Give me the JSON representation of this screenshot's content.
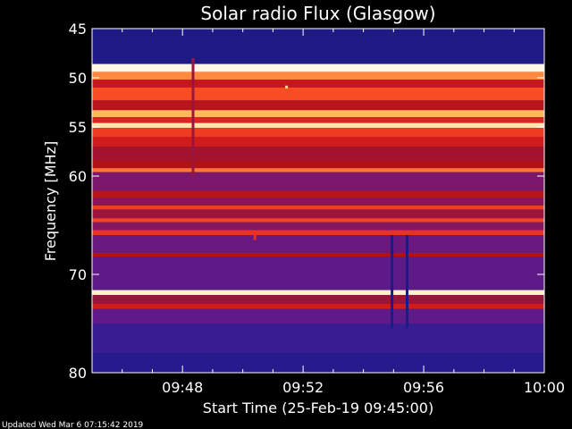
{
  "chart_data": {
    "type": "heatmap",
    "title": "Solar radio Flux (Glasgow)",
    "xlabel": "Start Time (25-Feb-19 09:45:00)",
    "ylabel": "Frequency [MHz]",
    "x_range_minutes": [
      0,
      15
    ],
    "ylim": [
      45,
      80
    ],
    "y_inverted": true,
    "x_ticks": [
      {
        "minute": 3,
        "label": "09:48"
      },
      {
        "minute": 7,
        "label": "09:52"
      },
      {
        "minute": 11,
        "label": "09:56"
      },
      {
        "minute": 15,
        "label": "10:00"
      }
    ],
    "y_ticks": [
      45,
      50,
      55,
      60,
      70,
      80
    ],
    "colormap": [
      "#1a1a80",
      "#2a1a90",
      "#4b1c94",
      "#7a1870",
      "#b01218",
      "#e32222",
      "#ff5a22",
      "#ffcf6a",
      "#ffffff"
    ],
    "background_intensity": 0.32,
    "bands": [
      {
        "from": 45.0,
        "to": 45.9,
        "intensity": 0.03
      },
      {
        "from": 45.9,
        "to": 48.6,
        "intensity": 0.05
      },
      {
        "from": 48.6,
        "to": 49.4,
        "intensity": 0.98
      },
      {
        "from": 49.4,
        "to": 50.2,
        "intensity": 0.8
      },
      {
        "from": 50.2,
        "to": 51.0,
        "intensity": 0.55
      },
      {
        "from": 51.0,
        "to": 52.3,
        "intensity": 0.72
      },
      {
        "from": 52.3,
        "to": 53.3,
        "intensity": 0.52
      },
      {
        "from": 53.3,
        "to": 54.0,
        "intensity": 0.85
      },
      {
        "from": 54.0,
        "to": 54.6,
        "intensity": 0.62
      },
      {
        "from": 54.6,
        "to": 55.1,
        "intensity": 0.93
      },
      {
        "from": 55.1,
        "to": 56.0,
        "intensity": 0.68
      },
      {
        "from": 56.0,
        "to": 57.0,
        "intensity": 0.58
      },
      {
        "from": 57.0,
        "to": 58.4,
        "intensity": 0.47
      },
      {
        "from": 58.4,
        "to": 59.2,
        "intensity": 0.5
      },
      {
        "from": 59.2,
        "to": 59.6,
        "intensity": 0.78
      },
      {
        "from": 59.6,
        "to": 61.5,
        "intensity": 0.38
      },
      {
        "from": 61.5,
        "to": 62.2,
        "intensity": 0.52
      },
      {
        "from": 62.2,
        "to": 63.0,
        "intensity": 0.42
      },
      {
        "from": 63.0,
        "to": 63.4,
        "intensity": 0.68
      },
      {
        "from": 63.4,
        "to": 64.3,
        "intensity": 0.45
      },
      {
        "from": 64.3,
        "to": 64.7,
        "intensity": 0.7
      },
      {
        "from": 64.7,
        "to": 65.5,
        "intensity": 0.4
      },
      {
        "from": 65.5,
        "to": 66.0,
        "intensity": 0.66
      },
      {
        "from": 66.0,
        "to": 67.8,
        "intensity": 0.33
      },
      {
        "from": 67.8,
        "to": 68.2,
        "intensity": 0.5
      },
      {
        "from": 68.2,
        "to": 71.6,
        "intensity": 0.3
      },
      {
        "from": 71.6,
        "to": 72.1,
        "intensity": 0.96
      },
      {
        "from": 72.1,
        "to": 73.0,
        "intensity": 0.45
      },
      {
        "from": 73.0,
        "to": 73.5,
        "intensity": 0.58
      },
      {
        "from": 73.5,
        "to": 75.0,
        "intensity": 0.3
      },
      {
        "from": 75.0,
        "to": 78.0,
        "intensity": 0.18
      },
      {
        "from": 78.0,
        "to": 80.0,
        "intensity": 0.1
      }
    ],
    "artifacts": [
      {
        "minute": 9.95,
        "freq_from": 66.0,
        "freq_to": 75.5,
        "intensity": 0.02
      },
      {
        "minute": 10.45,
        "freq_from": 66.0,
        "freq_to": 75.5,
        "intensity": 0.02
      },
      {
        "minute": 3.35,
        "freq_from": 48.0,
        "freq_to": 60.0,
        "intensity": 0.45
      },
      {
        "minute": 6.45,
        "freq_from": 50.8,
        "freq_to": 51.1,
        "intensity": 0.9
      },
      {
        "minute": 5.4,
        "freq_from": 66.0,
        "freq_to": 66.5,
        "intensity": 0.65
      }
    ]
  },
  "footer": {
    "updated": "Updated Wed Mar  6 07:15:42 2019"
  }
}
